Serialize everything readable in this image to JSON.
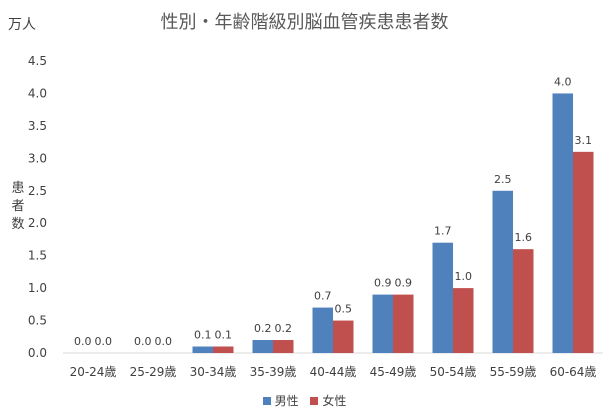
{
  "chart_data": {
    "type": "bar",
    "title": "性別・年齢階級別脳血管疾患患者数",
    "unit_label": "万人",
    "ylabel_chars": [
      "患",
      "者",
      "数"
    ],
    "ylim": [
      0,
      4.5
    ],
    "yticks": [
      "0.0",
      "0.5",
      "1.0",
      "1.5",
      "2.0",
      "2.5",
      "3.0",
      "3.5",
      "4.0",
      "4.5"
    ],
    "categories": [
      "20-24歳",
      "25-29歳",
      "30-34歳",
      "35-39歳",
      "40-44歳",
      "45-49歳",
      "50-54歳",
      "55-59歳",
      "60-64歳"
    ],
    "series": [
      {
        "name": "男性",
        "color": "#4F81BD",
        "values": [
          0.0,
          0.0,
          0.1,
          0.2,
          0.7,
          0.9,
          1.7,
          2.5,
          4.0
        ]
      },
      {
        "name": "女性",
        "color": "#C0504D",
        "values": [
          0.0,
          0.0,
          0.1,
          0.2,
          0.5,
          0.9,
          1.0,
          1.6,
          3.1
        ]
      }
    ],
    "data_labels": true,
    "grid": false,
    "legend_position": "bottom"
  }
}
